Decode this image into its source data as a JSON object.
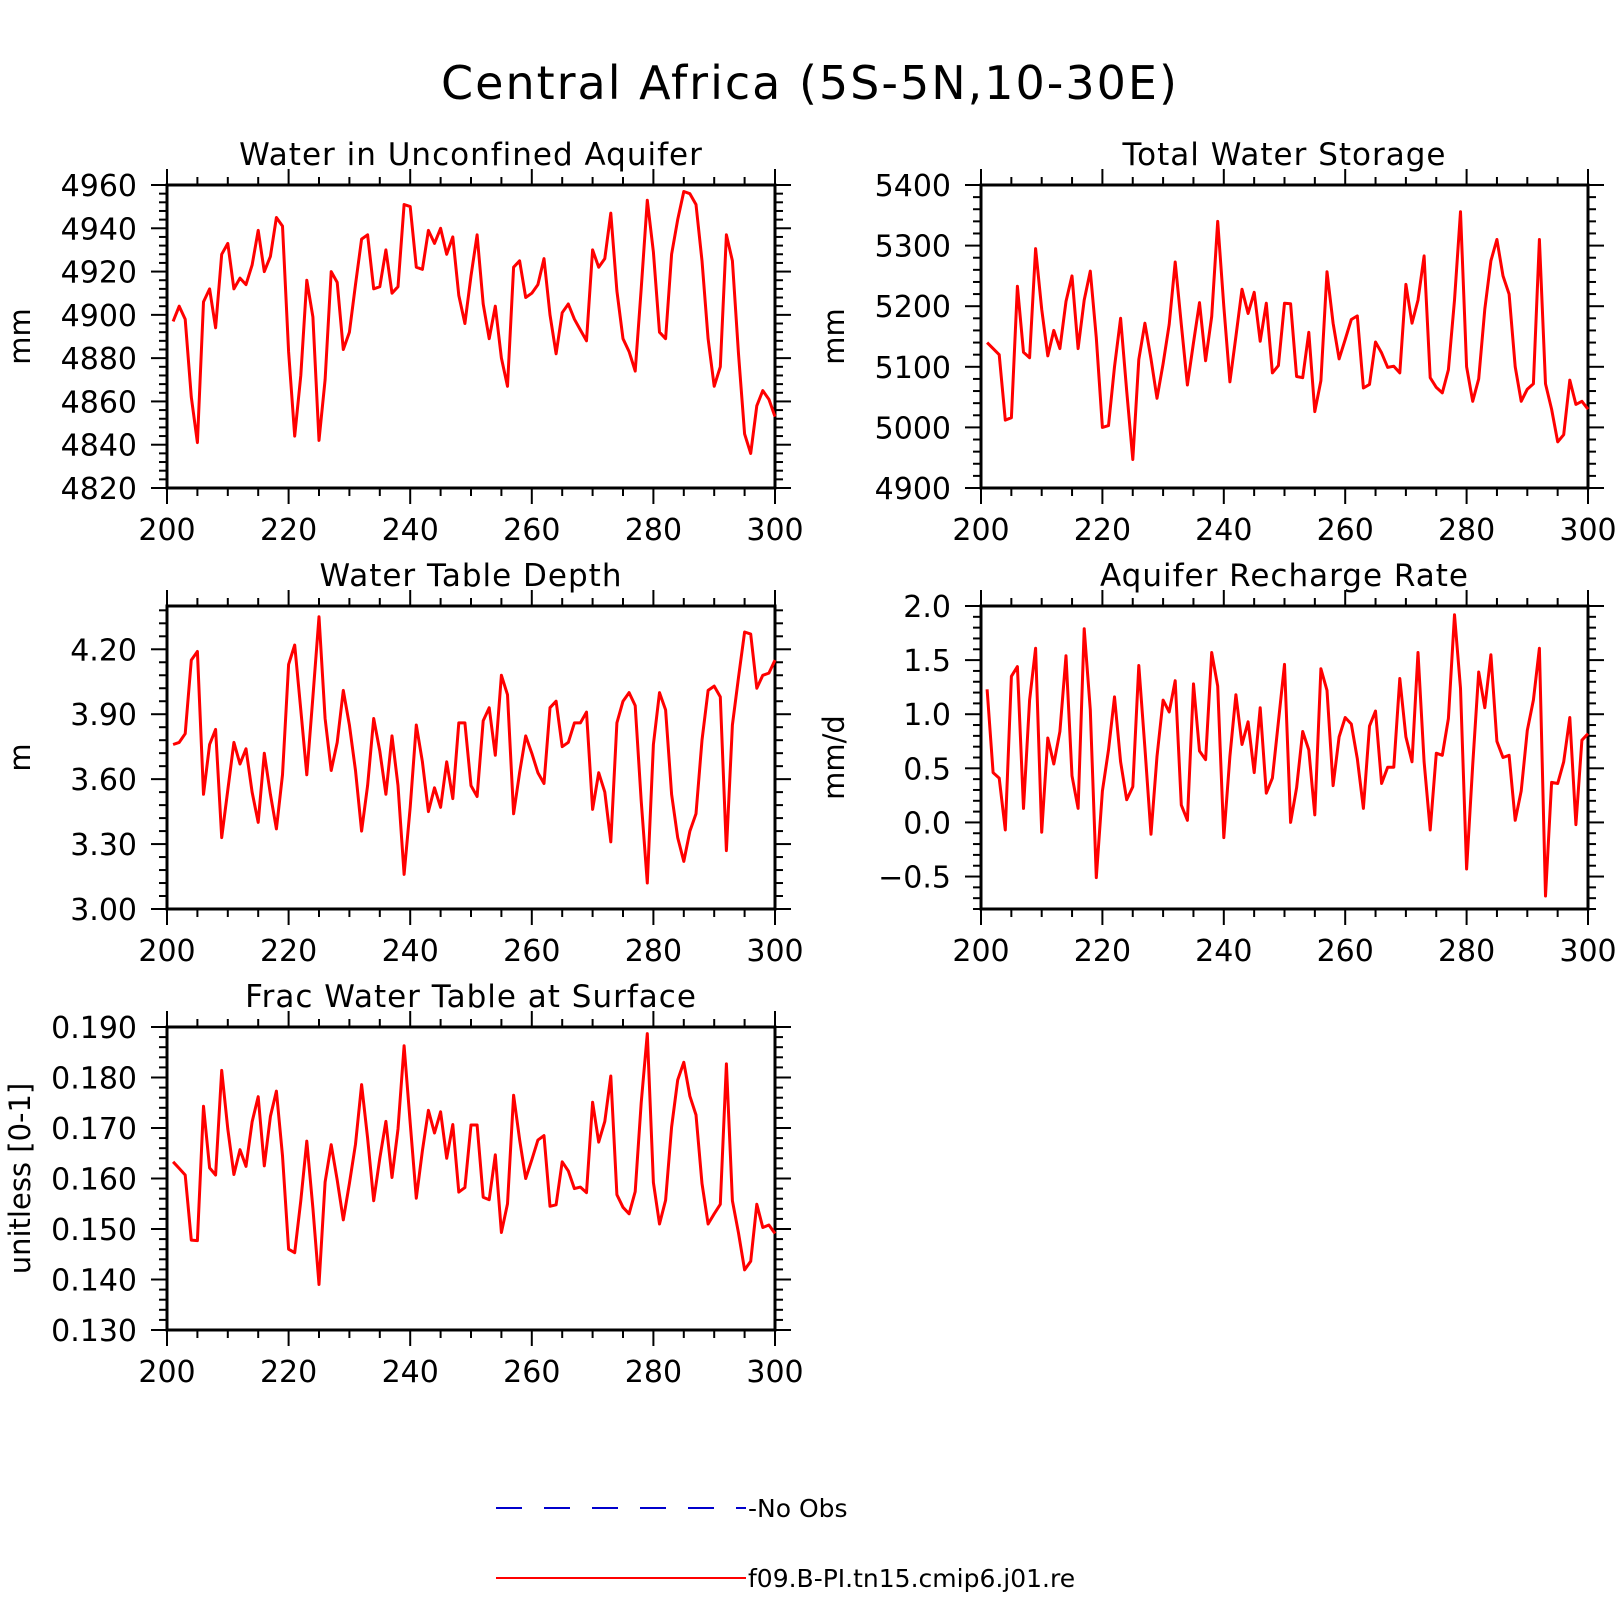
{
  "page_title": "Central Africa (5S-5N,10-30E)",
  "series_color": "#ff0000",
  "obs_color": "#0000cc",
  "legend": {
    "items": [
      {
        "label": "No Obs",
        "style": "dashed",
        "color": "#0000cc"
      },
      {
        "label": "f09.B-PI.tn15.cmip6.j01.re",
        "style": "solid",
        "color": "#ff0000"
      }
    ]
  },
  "chart_data": [
    {
      "type": "line",
      "title": "Water in Unconfined Aquifer",
      "ylabel": "mm",
      "xlim": [
        200,
        300
      ],
      "ylim": [
        4820,
        4960
      ],
      "xticks": [
        200,
        220,
        240,
        260,
        280,
        300
      ],
      "yticks": [
        4820,
        4840,
        4860,
        4880,
        4900,
        4920,
        4940,
        4960
      ],
      "ytick_labels": [
        "4820",
        "4840",
        "4860",
        "4880",
        "4900",
        "4920",
        "4940",
        "4960"
      ],
      "x_start": 201,
      "series": [
        {
          "values": [
            4897,
            4904,
            4898,
            4862,
            4841,
            4906,
            4912,
            4894,
            4928,
            4933,
            4912,
            4917,
            4914,
            4923,
            4939,
            4920,
            4927,
            4945,
            4941,
            4883,
            4844,
            4872,
            4916,
            4899,
            4842,
            4870,
            4920,
            4915,
            4884,
            4892,
            4914,
            4935,
            4937,
            4912,
            4913,
            4930,
            4910,
            4913,
            4951,
            4950,
            4922,
            4921,
            4939,
            4933,
            4940,
            4928,
            4936,
            4909,
            4896,
            4918,
            4937,
            4905,
            4889,
            4904,
            4880,
            4867,
            4922,
            4925,
            4908,
            4910,
            4914,
            4926,
            4900,
            4882,
            4901,
            4905,
            4898,
            4893,
            4888,
            4930,
            4922,
            4926,
            4947,
            4911,
            4889,
            4883,
            4874,
            4912,
            4953,
            4929,
            4892,
            4889,
            4928,
            4944,
            4957,
            4956,
            4951,
            4925,
            4889,
            4867,
            4876,
            4937,
            4925,
            4882,
            4845,
            4836,
            4858,
            4865,
            4861,
            4853
          ]
        }
      ]
    },
    {
      "type": "line",
      "title": "Total Water Storage",
      "ylabel": "mm",
      "xlim": [
        200,
        300
      ],
      "ylim": [
        4900,
        5400
      ],
      "xticks": [
        200,
        220,
        240,
        260,
        280,
        300
      ],
      "yticks": [
        4900,
        5000,
        5100,
        5200,
        5300,
        5400
      ],
      "ytick_labels": [
        "4900",
        "5000",
        "5100",
        "5200",
        "5300",
        "5400"
      ],
      "x_start": 201,
      "series": [
        {
          "values": [
            5140,
            5130,
            5120,
            5012,
            5016,
            5233,
            5124,
            5115,
            5295,
            5195,
            5118,
            5160,
            5130,
            5208,
            5250,
            5130,
            5210,
            5258,
            5148,
            5000,
            5003,
            5100,
            5180,
            5060,
            4947,
            5112,
            5172,
            5113,
            5048,
            5105,
            5170,
            5273,
            5170,
            5070,
            5140,
            5206,
            5110,
            5183,
            5340,
            5200,
            5075,
            5150,
            5228,
            5188,
            5223,
            5142,
            5205,
            5090,
            5102,
            5205,
            5204,
            5084,
            5082,
            5157,
            5026,
            5077,
            5257,
            5172,
            5113,
            5145,
            5178,
            5184,
            5065,
            5071,
            5141,
            5123,
            5099,
            5101,
            5090,
            5236,
            5172,
            5210,
            5283,
            5082,
            5066,
            5057,
            5095,
            5210,
            5356,
            5100,
            5043,
            5080,
            5195,
            5275,
            5310,
            5250,
            5220,
            5100,
            5043,
            5063,
            5072,
            5310,
            5072,
            5030,
            4976,
            4988,
            5078,
            5038,
            5043,
            5030
          ]
        }
      ]
    },
    {
      "type": "line",
      "title": "Water Table Depth",
      "ylabel": "m",
      "xlim": [
        200,
        300
      ],
      "ylim": [
        3.0,
        4.4
      ],
      "xticks": [
        200,
        220,
        240,
        260,
        280,
        300
      ],
      "yticks": [
        3.0,
        3.3,
        3.6,
        3.9,
        4.2
      ],
      "ytick_labels": [
        "3.00",
        "3.30",
        "3.60",
        "3.90",
        "4.20"
      ],
      "x_start": 201,
      "series": [
        {
          "values": [
            3.76,
            3.77,
            3.81,
            4.15,
            4.19,
            3.53,
            3.76,
            3.83,
            3.33,
            3.55,
            3.77,
            3.67,
            3.74,
            3.54,
            3.4,
            3.72,
            3.53,
            3.37,
            3.62,
            4.13,
            4.22,
            3.92,
            3.62,
            3.98,
            4.35,
            3.88,
            3.64,
            3.77,
            4.01,
            3.85,
            3.64,
            3.36,
            3.57,
            3.88,
            3.73,
            3.53,
            3.8,
            3.57,
            3.16,
            3.47,
            3.85,
            3.68,
            3.45,
            3.56,
            3.47,
            3.68,
            3.51,
            3.86,
            3.86,
            3.57,
            3.52,
            3.87,
            3.93,
            3.71,
            4.08,
            3.99,
            3.44,
            3.63,
            3.8,
            3.72,
            3.63,
            3.58,
            3.93,
            3.96,
            3.75,
            3.77,
            3.86,
            3.86,
            3.91,
            3.46,
            3.63,
            3.54,
            3.31,
            3.86,
            3.96,
            4.0,
            3.94,
            3.5,
            3.12,
            3.76,
            4.0,
            3.92,
            3.53,
            3.33,
            3.22,
            3.36,
            3.44,
            3.78,
            4.01,
            4.03,
            3.98,
            3.27,
            3.85,
            4.07,
            4.28,
            4.27,
            4.02,
            4.08,
            4.09,
            4.15
          ]
        }
      ]
    },
    {
      "type": "line",
      "title": "Aquifer Recharge Rate",
      "ylabel": "mm/d",
      "xlim": [
        200,
        300
      ],
      "ylim": [
        -0.8,
        2.0
      ],
      "xticks": [
        200,
        220,
        240,
        260,
        280,
        300
      ],
      "yticks": [
        -0.5,
        0.0,
        0.5,
        1.0,
        1.5,
        2.0
      ],
      "ytick_labels": [
        "−0.5",
        "0.0",
        "0.5",
        "1.0",
        "1.5",
        "2.0"
      ],
      "x_start": 201,
      "series": [
        {
          "values": [
            1.23,
            0.46,
            0.41,
            -0.07,
            1.35,
            1.44,
            0.13,
            1.13,
            1.61,
            -0.09,
            0.78,
            0.54,
            0.84,
            1.54,
            0.43,
            0.13,
            1.79,
            1.04,
            -0.51,
            0.29,
            0.67,
            1.16,
            0.56,
            0.21,
            0.33,
            1.45,
            0.69,
            -0.11,
            0.61,
            1.13,
            1.02,
            1.31,
            0.16,
            0.02,
            1.28,
            0.66,
            0.58,
            1.57,
            1.26,
            -0.14,
            0.61,
            1.18,
            0.72,
            0.93,
            0.46,
            1.06,
            0.27,
            0.41,
            0.93,
            1.46,
            0.0,
            0.32,
            0.84,
            0.67,
            0.07,
            1.42,
            1.22,
            0.34,
            0.79,
            0.97,
            0.91,
            0.59,
            0.13,
            0.89,
            1.03,
            0.36,
            0.51,
            0.51,
            1.33,
            0.79,
            0.56,
            1.57,
            0.56,
            -0.07,
            0.64,
            0.62,
            0.96,
            1.92,
            1.24,
            -0.43,
            0.53,
            1.39,
            1.06,
            1.55,
            0.75,
            0.6,
            0.62,
            0.02,
            0.29,
            0.85,
            1.13,
            1.61,
            -0.68,
            0.37,
            0.36,
            0.56,
            0.97,
            -0.02,
            0.76,
            0.82
          ]
        }
      ]
    },
    {
      "type": "line",
      "title": "Frac Water Table at Surface",
      "ylabel": "unitless [0-1]",
      "xlim": [
        200,
        300
      ],
      "ylim": [
        0.13,
        0.19
      ],
      "xticks": [
        200,
        220,
        240,
        260,
        280,
        300
      ],
      "yticks": [
        0.13,
        0.14,
        0.15,
        0.16,
        0.17,
        0.18,
        0.19
      ],
      "ytick_labels": [
        "0.130",
        "0.140",
        "0.150",
        "0.160",
        "0.170",
        "0.180",
        "0.190"
      ],
      "x_start": 201,
      "series": [
        {
          "values": [
            0.1633,
            0.162,
            0.1607,
            0.1478,
            0.1477,
            0.1743,
            0.1621,
            0.1607,
            0.1814,
            0.1698,
            0.1608,
            0.1657,
            0.1624,
            0.1712,
            0.1762,
            0.1625,
            0.1723,
            0.1773,
            0.1645,
            0.146,
            0.1453,
            0.1556,
            0.1674,
            0.1541,
            0.139,
            0.1593,
            0.1667,
            0.1597,
            0.1518,
            0.159,
            0.1668,
            0.1786,
            0.168,
            0.1556,
            0.164,
            0.1713,
            0.1602,
            0.1698,
            0.1863,
            0.171,
            0.1561,
            0.1655,
            0.1735,
            0.169,
            0.1732,
            0.164,
            0.1707,
            0.1573,
            0.1582,
            0.1706,
            0.1706,
            0.1563,
            0.1558,
            0.1647,
            0.1493,
            0.155,
            0.1765,
            0.1677,
            0.16,
            0.1637,
            0.1676,
            0.1685,
            0.1545,
            0.1548,
            0.1633,
            0.1615,
            0.158,
            0.1583,
            0.1572,
            0.1751,
            0.1672,
            0.1713,
            0.1803,
            0.1568,
            0.1543,
            0.153,
            0.1574,
            0.175,
            0.1887,
            0.1592,
            0.151,
            0.1557,
            0.1702,
            0.1795,
            0.183,
            0.1763,
            0.1726,
            0.159,
            0.151,
            0.153,
            0.1549,
            0.1827,
            0.1556,
            0.1492,
            0.1419,
            0.1436,
            0.1549,
            0.1503,
            0.1508,
            0.1491
          ]
        }
      ]
    }
  ]
}
